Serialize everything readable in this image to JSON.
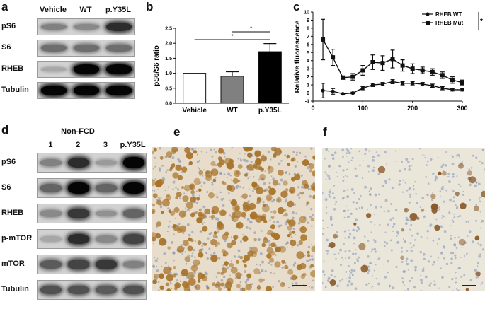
{
  "panels": {
    "a": {
      "label": "a",
      "lanes": [
        "Vehicle",
        "WT",
        "p.Y35L"
      ],
      "rows": [
        "pS6",
        "S6",
        "RHEB",
        "Tubulin"
      ],
      "intensity": [
        [
          0.45,
          0.4,
          0.85
        ],
        [
          0.55,
          0.55,
          0.55
        ],
        [
          0.2,
          1.0,
          1.0
        ],
        [
          1.0,
          1.0,
          1.0
        ]
      ]
    },
    "b": {
      "label": "b"
    },
    "c": {
      "label": "c"
    },
    "d": {
      "label": "d",
      "group_label": "Non-FCD",
      "lanes": [
        "1",
        "2",
        "3",
        "p.Y35L"
      ],
      "rows": [
        "pS6",
        "S6",
        "RHEB",
        "p-mTOR",
        "mTOR",
        "Tubulin"
      ],
      "intensity": [
        [
          0.45,
          0.85,
          0.3,
          1.0
        ],
        [
          0.6,
          1.0,
          0.6,
          1.0
        ],
        [
          0.4,
          0.8,
          0.35,
          0.6
        ],
        [
          0.2,
          0.85,
          0.4,
          0.75
        ],
        [
          0.65,
          0.75,
          0.8,
          0.45
        ],
        [
          0.7,
          0.7,
          0.65,
          0.7
        ]
      ]
    },
    "e": {
      "label": "e",
      "stain_density": 0.8
    },
    "f": {
      "label": "f",
      "stain_density": 0.08
    }
  },
  "chart_data": [
    {
      "type": "bar",
      "title": "",
      "xlabel": "",
      "ylabel": "pS6/S6 ratio",
      "categories": [
        "Vehicle",
        "WT",
        "p.Y35L"
      ],
      "values": [
        1.0,
        0.9,
        1.72
      ],
      "errors": [
        0.0,
        0.15,
        0.27
      ],
      "colors": [
        "#ffffff",
        "#808080",
        "#000000"
      ],
      "ylim": [
        0,
        2.5
      ],
      "yticks": [
        "0.0",
        "0.5",
        "1.0",
        "1.5",
        "2.0",
        "2.5"
      ],
      "significance": [
        {
          "from": 1,
          "to": 2,
          "label": "*"
        },
        {
          "from": 0,
          "to": 2,
          "label": "*"
        }
      ]
    },
    {
      "type": "line",
      "title": "",
      "xlabel": "",
      "ylabel": "Relative fluorescence",
      "xlim": [
        0,
        300
      ],
      "ylim": [
        -1,
        10
      ],
      "xticks": [
        "0",
        "100",
        "200",
        "300"
      ],
      "yticks": [
        "-1",
        "0",
        "1",
        "2",
        "3",
        "4",
        "5",
        "6",
        "7",
        "8",
        "9",
        "10"
      ],
      "legend_position": "top-right",
      "significance_label": "*",
      "series": [
        {
          "name": "RHEB WT",
          "marker": "circle",
          "x": [
            20,
            40,
            60,
            80,
            100,
            120,
            140,
            160,
            180,
            200,
            220,
            240,
            260,
            280,
            300
          ],
          "y": [
            0.3,
            0.2,
            -0.1,
            0.0,
            0.6,
            1.0,
            1.1,
            1.4,
            1.2,
            1.2,
            1.1,
            0.9,
            0.6,
            0.4,
            0.4
          ],
          "err": [
            0.9,
            0.35,
            0.1,
            0.1,
            0.2,
            0.2,
            0.2,
            0.25,
            0.2,
            0.2,
            0.2,
            0.2,
            0.2,
            0.15,
            0.15
          ]
        },
        {
          "name": "RHEB Mut",
          "marker": "square",
          "x": [
            20,
            40,
            60,
            80,
            100,
            120,
            140,
            160,
            180,
            200,
            220,
            240,
            260,
            280,
            300
          ],
          "y": [
            6.6,
            4.4,
            1.9,
            2.0,
            2.8,
            3.8,
            3.7,
            4.2,
            3.4,
            3.0,
            2.8,
            2.6,
            2.2,
            1.6,
            1.3
          ],
          "err": [
            2.5,
            1.0,
            0.2,
            0.4,
            0.6,
            0.9,
            0.9,
            1.1,
            0.7,
            0.6,
            0.4,
            0.4,
            0.4,
            0.4,
            0.3
          ]
        }
      ]
    }
  ]
}
